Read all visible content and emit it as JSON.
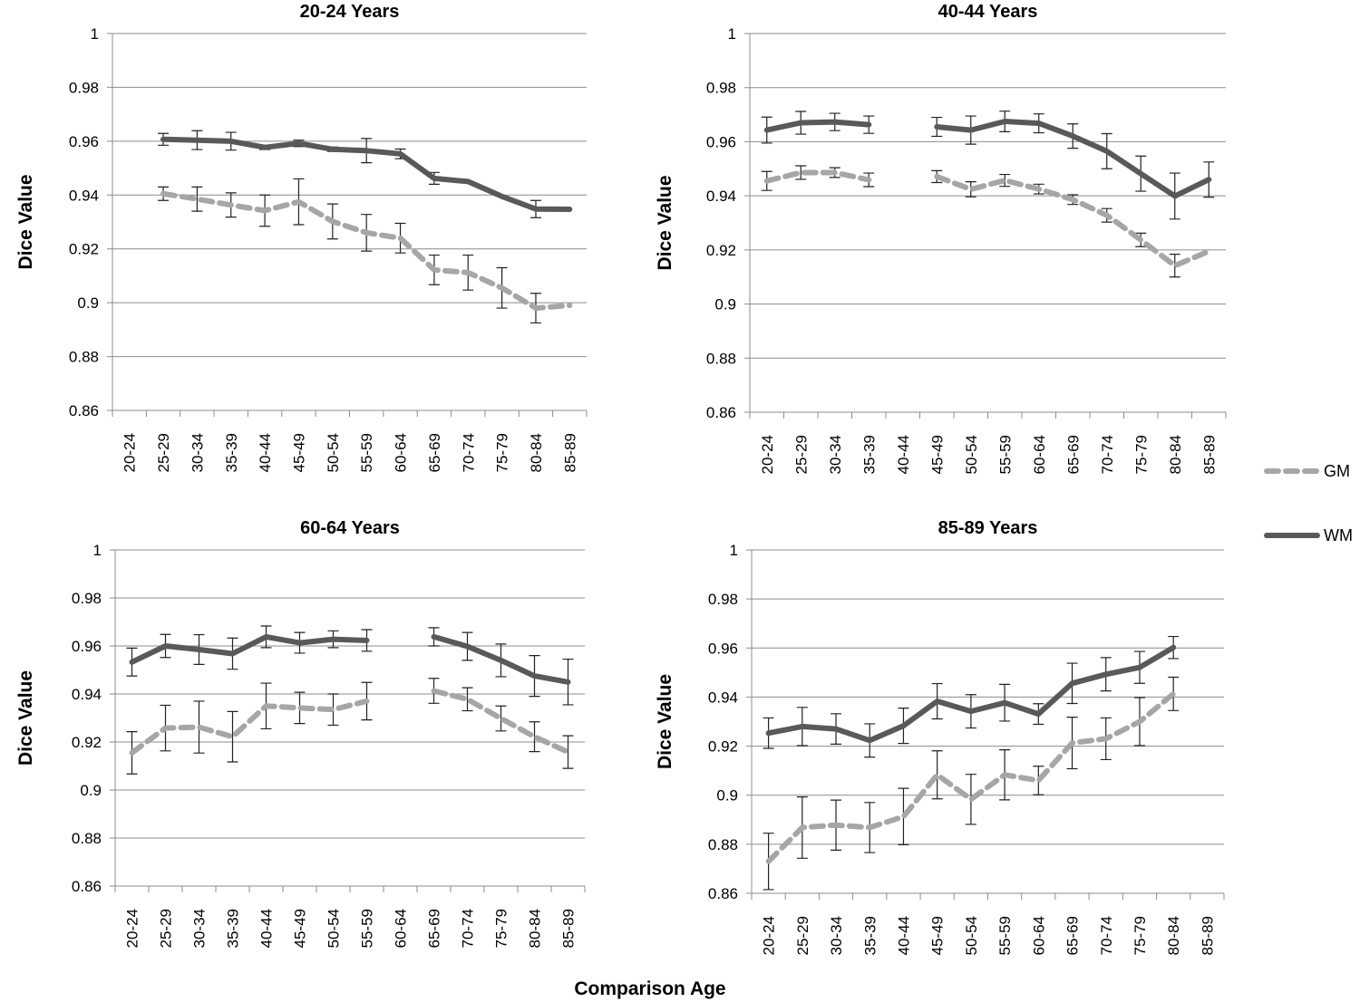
{
  "figure": {
    "x_axis_label": "Comparison Age",
    "legend": [
      {
        "key": "GM",
        "label": "GM",
        "color": "#a6a6a6",
        "style": "dashed"
      },
      {
        "key": "WM",
        "label": "WM",
        "color": "#595959",
        "style": "solid"
      }
    ]
  },
  "chart_data": [
    {
      "type": "line",
      "title": "20-24 Years",
      "xlabel": "",
      "ylabel": "Dice Value",
      "ylim": [
        0.86,
        1
      ],
      "yticks": [
        "0.86",
        "0.88",
        "0.9",
        "0.92",
        "0.94",
        "0.96",
        "0.98",
        "1"
      ],
      "categories": [
        "20-24",
        "25-29",
        "30-34",
        "35-39",
        "40-44",
        "45-49",
        "50-54",
        "55-59",
        "60-64",
        "65-69",
        "70-74",
        "75-79",
        "80-84",
        "85-89"
      ],
      "series": [
        {
          "name": "GM",
          "values": [
            null,
            0.9405,
            0.9385,
            0.9363,
            0.9342,
            0.9375,
            0.9302,
            0.926,
            0.924,
            0.9122,
            0.9112,
            0.9055,
            0.898,
            0.899
          ],
          "errors": [
            null,
            0.0025,
            0.0045,
            0.0045,
            0.0058,
            0.0085,
            0.0065,
            0.0068,
            0.0055,
            0.0055,
            0.0065,
            0.0075,
            0.0055,
            null
          ]
        },
        {
          "name": "WM",
          "values": [
            null,
            0.9607,
            0.9604,
            0.96,
            0.9577,
            0.9592,
            0.957,
            0.9565,
            0.9553,
            0.9462,
            0.945,
            0.9395,
            0.9348,
            0.9347
          ],
          "errors": [
            null,
            0.0022,
            0.0035,
            0.0033,
            0.0008,
            0.0012,
            0.0008,
            0.0045,
            0.0018,
            0.0022,
            null,
            null,
            0.0032,
            null
          ]
        }
      ]
    },
    {
      "type": "line",
      "title": "40-44 Years",
      "xlabel": "",
      "ylabel": "Dice Value",
      "ylim": [
        0.86,
        1
      ],
      "yticks": [
        "0.86",
        "0.88",
        "0.9",
        "0.92",
        "0.94",
        "0.96",
        "0.98",
        "1"
      ],
      "categories": [
        "20-24",
        "25-29",
        "30-34",
        "35-39",
        "40-44",
        "45-49",
        "50-54",
        "55-59",
        "60-64",
        "65-69",
        "70-74",
        "75-79",
        "80-84",
        "85-89"
      ],
      "series": [
        {
          "name": "GM",
          "values": [
            0.9455,
            0.9486,
            0.9486,
            0.9459,
            null,
            0.9471,
            0.9424,
            0.9457,
            0.9425,
            0.9386,
            0.9328,
            0.9237,
            0.9142,
            0.9195
          ],
          "errors": [
            0.0035,
            0.0025,
            0.0018,
            0.0025,
            null,
            0.0022,
            0.0028,
            0.0022,
            0.0018,
            0.0018,
            0.0025,
            0.0025,
            0.0042,
            null
          ]
        },
        {
          "name": "WM",
          "values": [
            0.9643,
            0.967,
            0.9673,
            0.9663,
            null,
            0.9655,
            0.9643,
            0.9675,
            0.9668,
            0.9621,
            0.9565,
            0.9482,
            0.9399,
            0.946
          ],
          "errors": [
            0.0048,
            0.0042,
            0.0032,
            0.0032,
            null,
            0.0035,
            0.0052,
            0.0038,
            0.0035,
            0.0045,
            0.0065,
            0.0065,
            0.0085,
            0.0065
          ]
        }
      ]
    },
    {
      "type": "line",
      "title": "60-64 Years",
      "xlabel": "",
      "ylabel": "Dice Value",
      "ylim": [
        0.86,
        1
      ],
      "yticks": [
        "0.86",
        "0.88",
        "0.9",
        "0.92",
        "0.94",
        "0.96",
        "0.98",
        "1"
      ],
      "categories": [
        "20-24",
        "25-29",
        "30-34",
        "35-39",
        "40-44",
        "45-49",
        "50-54",
        "55-59",
        "60-64",
        "65-69",
        "70-74",
        "75-79",
        "80-84",
        "85-89"
      ],
      "series": [
        {
          "name": "GM",
          "values": [
            0.9155,
            0.9258,
            0.9262,
            0.9222,
            0.935,
            0.9342,
            0.9335,
            0.937,
            null,
            0.9413,
            0.9378,
            0.9298,
            0.9222,
            0.9158
          ],
          "errors": [
            0.0088,
            0.0095,
            0.0108,
            0.0105,
            0.0095,
            0.0065,
            0.0065,
            0.0078,
            null,
            0.0052,
            0.0048,
            0.0052,
            0.0062,
            0.0068
          ]
        },
        {
          "name": "WM",
          "values": [
            0.9533,
            0.96,
            0.9585,
            0.9568,
            0.9638,
            0.9613,
            0.9628,
            0.9623,
            null,
            0.9638,
            0.9598,
            0.954,
            0.9475,
            0.945
          ],
          "errors": [
            0.0058,
            0.0048,
            0.0062,
            0.0065,
            0.0045,
            0.0043,
            0.0035,
            0.0045,
            null,
            0.0038,
            0.0058,
            0.0068,
            0.0085,
            0.0095
          ]
        }
      ]
    },
    {
      "type": "line",
      "title": "85-89 Years",
      "xlabel": "",
      "ylabel": "Dice Value",
      "ylim": [
        0.86,
        1
      ],
      "yticks": [
        "0.86",
        "0.88",
        "0.9",
        "0.92",
        "0.94",
        "0.96",
        "0.98",
        "1"
      ],
      "categories": [
        "20-24",
        "25-29",
        "30-34",
        "35-39",
        "40-44",
        "45-49",
        "50-54",
        "55-59",
        "60-64",
        "65-69",
        "70-74",
        "75-79",
        "80-84",
        "85-89"
      ],
      "series": [
        {
          "name": "GM",
          "values": [
            0.873,
            0.8868,
            0.8878,
            0.8868,
            0.8913,
            0.9083,
            0.8983,
            0.9083,
            0.906,
            0.9213,
            0.923,
            0.93,
            0.9413,
            null
          ],
          "errors": [
            0.0115,
            0.0125,
            0.0102,
            0.0102,
            0.0115,
            0.0098,
            0.0102,
            0.0102,
            0.0058,
            0.0105,
            0.0085,
            0.0098,
            0.0068,
            null
          ]
        },
        {
          "name": "WM",
          "values": [
            0.9253,
            0.928,
            0.927,
            0.9223,
            0.9283,
            0.9383,
            0.9342,
            0.9377,
            0.9331,
            0.9456,
            0.9493,
            0.9521,
            0.9602,
            null
          ],
          "errors": [
            0.0062,
            0.0078,
            0.0062,
            0.0068,
            0.0072,
            0.0072,
            0.0068,
            0.0075,
            0.0042,
            0.0082,
            0.0068,
            0.0065,
            0.0045,
            null
          ]
        }
      ]
    }
  ]
}
